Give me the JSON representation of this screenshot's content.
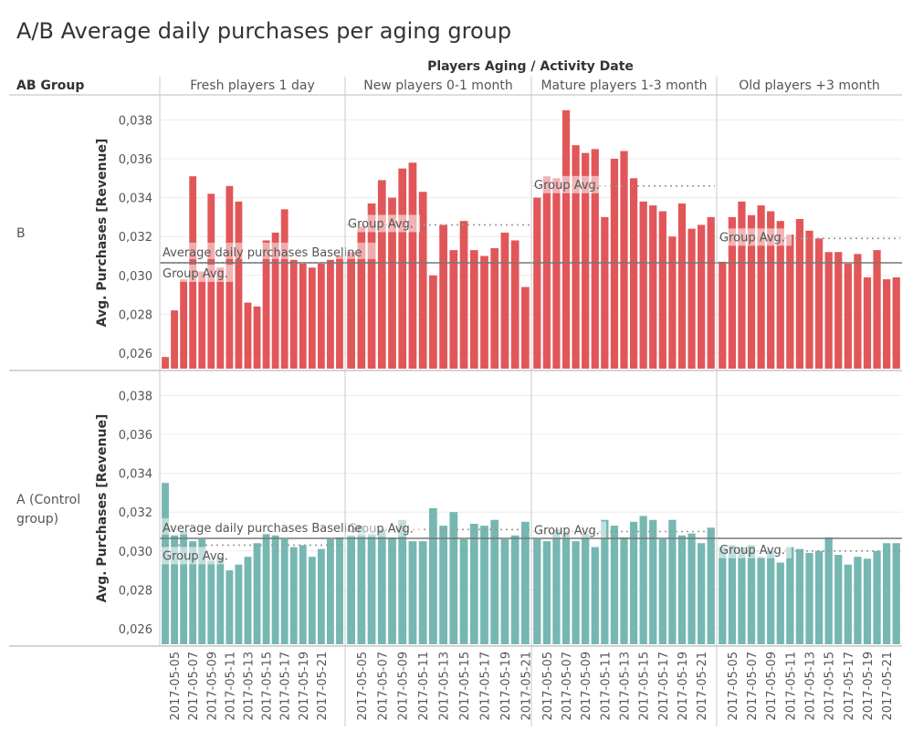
{
  "title": "A/B Average daily purchases per aging group",
  "header": {
    "columns_title": "Players Aging  /  Activity Date",
    "row_field": "AB Group"
  },
  "colors": {
    "B": "#e15759",
    "A": "#76b7b2",
    "grid": "#ececec",
    "divider": "#c8c8c8",
    "baseline": "#777777",
    "group_avg": "#999999"
  },
  "chart_data": {
    "type": "bar",
    "ylabel": "Avg. Purchases [Revenue]",
    "ylim": [
      0.0252,
      0.0391
    ],
    "yticks": [
      "0,026",
      "0,028",
      "0,030",
      "0,032",
      "0,034",
      "0,036",
      "0,038"
    ],
    "ytick_values": [
      0.026,
      0.028,
      0.03,
      0.032,
      0.034,
      0.036,
      0.038
    ],
    "baseline": {
      "label": "Average daily purchases Baseline",
      "value": 0.03065
    },
    "group_avg_label": "Group Avg.",
    "date_ticks": [
      "2017-05-05",
      "2017-05-07",
      "2017-05-09",
      "2017-05-11",
      "2017-05-13",
      "2017-05-15",
      "2017-05-17",
      "2017-05-19",
      "2017-05-21"
    ],
    "columns": [
      "Fresh players 1 day",
      "New players 0-1 month",
      "Mature players 1-3 month",
      "Old players +3 month"
    ],
    "rows": [
      {
        "group": "B",
        "color_key": "B",
        "group_avgs": [
          0.03065,
          0.0326,
          0.0346,
          0.0319
        ],
        "values": [
          [
            0.0258,
            0.0282,
            0.0298,
            0.0351,
            0.0302,
            0.0342,
            0.0304,
            0.0346,
            0.0338,
            0.0286,
            0.0284,
            0.0318,
            0.0322,
            0.0334,
            0.0308,
            0.0306,
            0.0304,
            0.0306,
            0.0308,
            0.031
          ],
          [
            0.0312,
            0.0325,
            0.0337,
            0.0349,
            0.034,
            0.0355,
            0.0358,
            0.0343,
            0.03,
            0.0326,
            0.0313,
            0.0328,
            0.0313,
            0.031,
            0.0314,
            0.0322,
            0.0318,
            0.0294
          ],
          [
            0.034,
            0.0351,
            0.035,
            0.0385,
            0.0367,
            0.0363,
            0.0365,
            0.033,
            0.036,
            0.0364,
            0.035,
            0.0338,
            0.0336,
            0.0333,
            0.032,
            0.0337,
            0.0324,
            0.0326,
            0.033
          ],
          [
            0.0307,
            0.033,
            0.0338,
            0.0331,
            0.0336,
            0.0333,
            0.0328,
            0.0321,
            0.0329,
            0.0323,
            0.0319,
            0.0312,
            0.0312,
            0.0306,
            0.0311,
            0.0299,
            0.0313,
            0.0298,
            0.0299
          ]
        ]
      },
      {
        "group": "A (Control\ngroup)",
        "color_key": "A",
        "group_avgs": [
          0.0303,
          0.0311,
          0.031,
          0.03
        ],
        "values": [
          [
            0.0335,
            0.0308,
            0.031,
            0.0305,
            0.0306,
            0.0295,
            0.0297,
            0.029,
            0.0293,
            0.0297,
            0.0304,
            0.0309,
            0.0308,
            0.0306,
            0.0302,
            0.0303,
            0.0297,
            0.0301,
            0.0306,
            0.0307
          ],
          [
            0.0308,
            0.0313,
            0.0309,
            0.0311,
            0.0307,
            0.0316,
            0.0305,
            0.0305,
            0.0322,
            0.0313,
            0.032,
            0.0306,
            0.0314,
            0.0313,
            0.0316,
            0.0306,
            0.0308,
            0.0315
          ],
          [
            0.0306,
            0.0305,
            0.0311,
            0.0309,
            0.0305,
            0.0309,
            0.0302,
            0.0316,
            0.0313,
            0.0307,
            0.0315,
            0.0318,
            0.0316,
            0.0306,
            0.0316,
            0.0308,
            0.0309,
            0.0304,
            0.0312
          ],
          [
            0.0302,
            0.0303,
            0.0302,
            0.0303,
            0.0297,
            0.03,
            0.0294,
            0.0302,
            0.0301,
            0.0299,
            0.03,
            0.0307,
            0.0298,
            0.0293,
            0.0297,
            0.0296,
            0.03,
            0.0304,
            0.0304
          ]
        ]
      }
    ]
  }
}
